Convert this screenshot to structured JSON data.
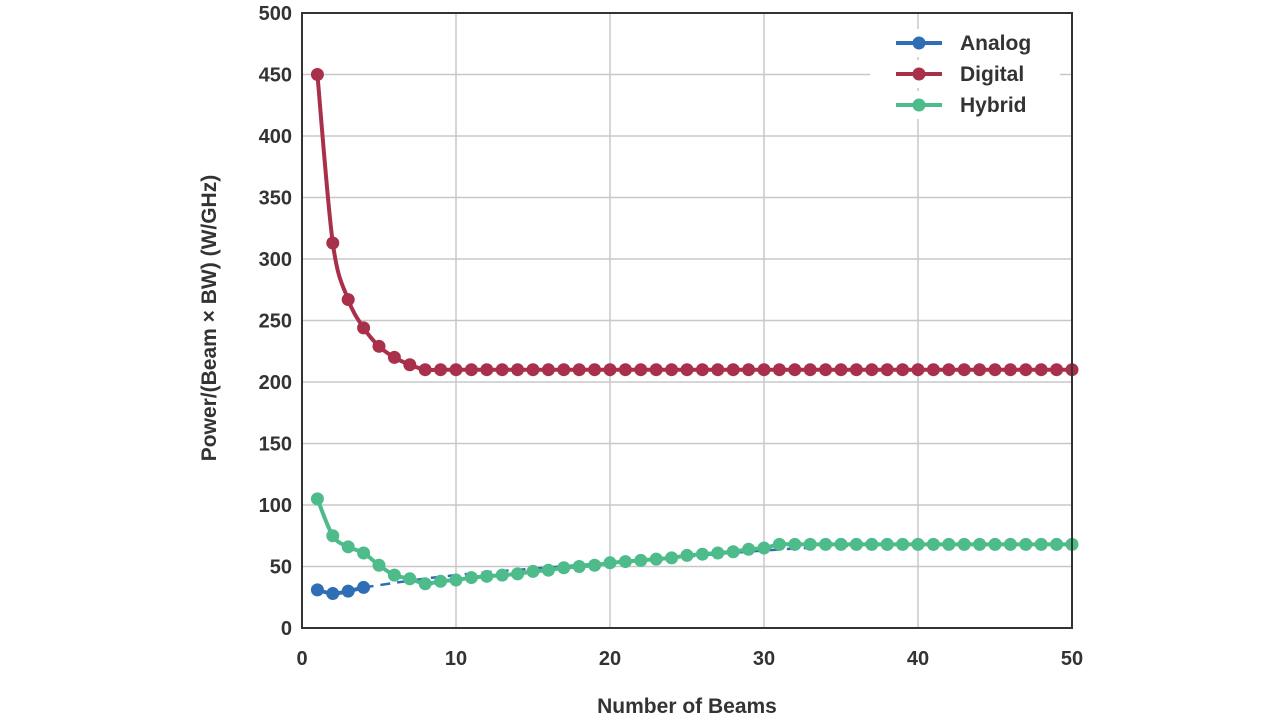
{
  "chart_data": {
    "type": "line",
    "xlabel": "Number of Beams",
    "ylabel": "Power/(Beam × BW) (W/GHz)",
    "xlim": [
      0,
      50
    ],
    "ylim": [
      0,
      500
    ],
    "xticks": [
      0,
      10,
      20,
      30,
      40,
      50
    ],
    "yticks": [
      0,
      50,
      100,
      150,
      200,
      250,
      300,
      350,
      400,
      450,
      500
    ],
    "grid": true,
    "legend_position": "top-right",
    "series": [
      {
        "name": "Analog",
        "color": "#2f6db5",
        "markers_x": [
          1,
          2,
          3,
          4
        ],
        "markers_y": [
          31,
          28,
          30,
          33
        ],
        "dashed_line": [
          [
            4,
            33
          ],
          [
            10,
            43
          ],
          [
            20,
            53
          ],
          [
            30,
            63
          ],
          [
            36,
            67
          ]
        ]
      },
      {
        "name": "Digital",
        "color": "#a8304a",
        "x": [
          1,
          2,
          3,
          4,
          5,
          6,
          7,
          8,
          9,
          10,
          11,
          12,
          13,
          14,
          15,
          16,
          17,
          18,
          19,
          20,
          21,
          22,
          23,
          24,
          25,
          26,
          27,
          28,
          29,
          30,
          31,
          32,
          33,
          34,
          35,
          36,
          37,
          38,
          39,
          40,
          41,
          42,
          43,
          44,
          45,
          46,
          47,
          48,
          49,
          50
        ],
        "y": [
          450,
          313,
          267,
          244,
          229,
          220,
          214,
          210,
          210,
          210,
          210,
          210,
          210,
          210,
          210,
          210,
          210,
          210,
          210,
          210,
          210,
          210,
          210,
          210,
          210,
          210,
          210,
          210,
          210,
          210,
          210,
          210,
          210,
          210,
          210,
          210,
          210,
          210,
          210,
          210,
          210,
          210,
          210,
          210,
          210,
          210,
          210,
          210,
          210,
          210
        ]
      },
      {
        "name": "Hybrid",
        "color": "#4dbb8a",
        "x": [
          1,
          2,
          3,
          4,
          5,
          6,
          7,
          8,
          9,
          10,
          11,
          12,
          13,
          14,
          15,
          16,
          17,
          18,
          19,
          20,
          21,
          22,
          23,
          24,
          25,
          26,
          27,
          28,
          29,
          30,
          31,
          32,
          33,
          34,
          35,
          36,
          37,
          38,
          39,
          40,
          41,
          42,
          43,
          44,
          45,
          46,
          47,
          48,
          49,
          50
        ],
        "y": [
          105,
          75,
          66,
          61,
          51,
          43,
          40,
          36,
          38,
          39,
          41,
          42,
          43,
          44,
          46,
          47,
          49,
          50,
          51,
          53,
          54,
          55,
          56,
          57,
          59,
          60,
          61,
          62,
          64,
          65,
          68,
          68,
          68,
          68,
          68,
          68,
          68,
          68,
          68,
          68,
          68,
          68,
          68,
          68,
          68,
          68,
          68,
          68,
          68,
          68
        ]
      }
    ]
  }
}
